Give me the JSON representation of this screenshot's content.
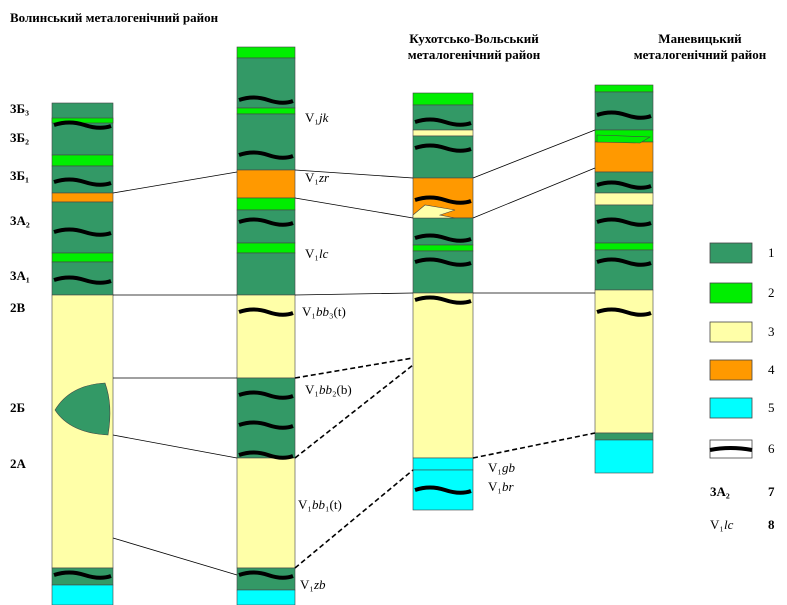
{
  "column_titles": [
    {
      "lines": [
        "Волинський металогенічний район"
      ]
    },
    {
      "lines": [
        "Кухотсько-Вольський",
        "металогенічний район"
      ]
    },
    {
      "lines": [
        "Маневицький",
        "металогенічний район"
      ]
    }
  ],
  "left_labels": [
    "3Б₃",
    "3Б₂",
    "3Б₁",
    "3А₂",
    "3А₁",
    "2В",
    "2Б",
    "2А"
  ],
  "strat_labels": [
    "V₁jk",
    "V₁zr",
    "V₁lc",
    "V₁bb₃(t)",
    "V₁bb₂(b)",
    "V₁bb₁(t)",
    "V₁zb",
    "V₁gb",
    "V₁br"
  ],
  "legend": {
    "numbers": [
      "1",
      "2",
      "3",
      "4",
      "5",
      "6",
      "7",
      "8"
    ],
    "sample_7": "3А₂",
    "sample_8": "V₁lc"
  }
}
